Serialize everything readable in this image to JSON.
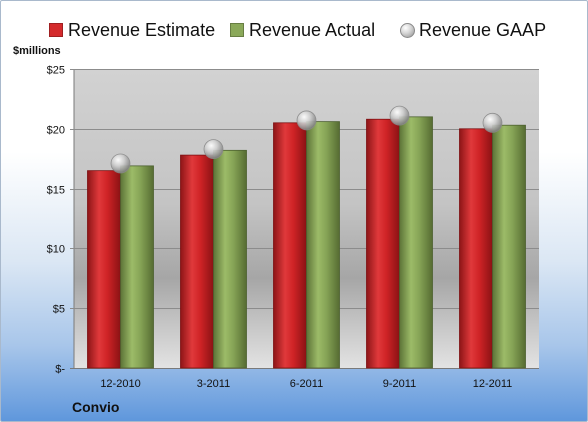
{
  "chart_data": {
    "type": "bar",
    "unit_label": "$millions",
    "company": "Convio",
    "categories": [
      "12-2010",
      "3-2011",
      "6-2011",
      "9-2011",
      "12-2011"
    ],
    "series": [
      {
        "name": "Revenue Estimate",
        "values": [
          16.5,
          17.8,
          20.5,
          20.8,
          20.0
        ],
        "color": "#d42a2c"
      },
      {
        "name": "Revenue Actual",
        "values": [
          16.9,
          18.2,
          20.6,
          21.0,
          20.3
        ],
        "color": "#8ba95a"
      }
    ],
    "gaap": {
      "name": "Revenue GAAP",
      "values": [
        17.1,
        18.3,
        20.7,
        21.1,
        20.5
      ]
    },
    "ylim": [
      0,
      25
    ],
    "yticks": [
      0,
      5,
      10,
      15,
      20,
      25
    ],
    "ytick_labels": [
      "$-",
      "$5",
      "$10",
      "$15",
      "$20",
      "$25"
    ],
    "grid": true,
    "legend_position": "top"
  }
}
